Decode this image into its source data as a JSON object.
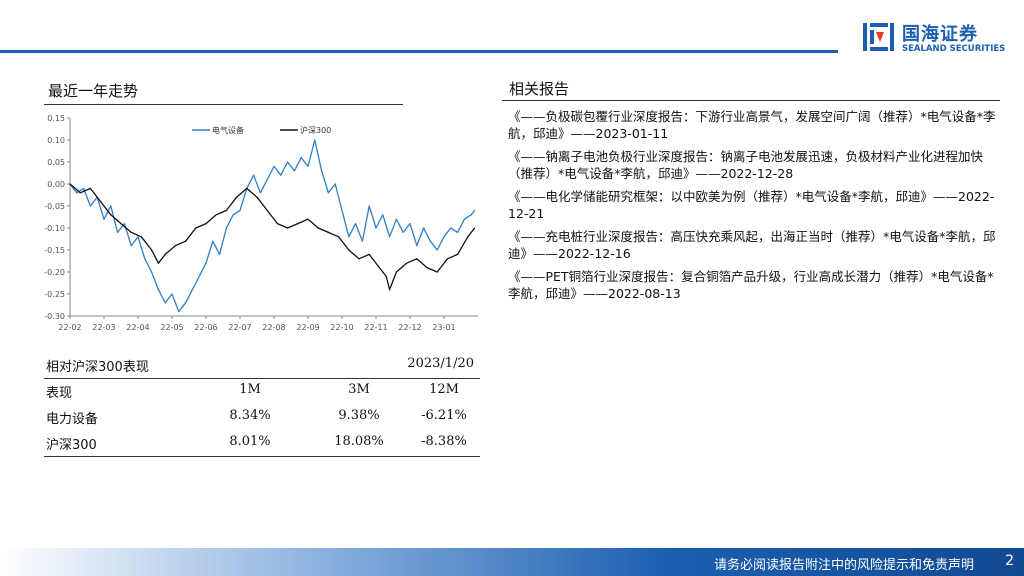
{
  "header": {
    "brand_cn": "国海证券",
    "brand_en": "SEALAND SECURITIES",
    "brand_color": "#1b5fb0"
  },
  "chart_section": {
    "title": "最近一年走势"
  },
  "chart_data": {
    "type": "line",
    "x_tick_labels": [
      "22-02",
      "22-03",
      "22-04",
      "22-05",
      "22-06",
      "22-07",
      "22-08",
      "22-09",
      "22-10",
      "22-11",
      "22-12",
      "23-01"
    ],
    "y_ticks": [
      0.15,
      0.1,
      0.05,
      0.0,
      -0.05,
      -0.1,
      -0.15,
      -0.2,
      -0.25,
      -0.3
    ],
    "y_tick_labels": [
      "0.15",
      "0.10",
      "0.05",
      "0.00",
      "-0.05",
      "-0.10",
      "-0.15",
      "-0.20",
      "-0.25",
      "-0.30"
    ],
    "ylim": [
      -0.3,
      0.15
    ],
    "xlim": [
      0,
      12
    ],
    "grid": false,
    "legend_position": "top-center",
    "series": [
      {
        "name": "电气设备",
        "color": "#2f7fc8",
        "points": [
          [
            0,
            0.0
          ],
          [
            0.2,
            -0.02
          ],
          [
            0.4,
            -0.01
          ],
          [
            0.6,
            -0.05
          ],
          [
            0.8,
            -0.03
          ],
          [
            1.0,
            -0.08
          ],
          [
            1.2,
            -0.05
          ],
          [
            1.4,
            -0.11
          ],
          [
            1.6,
            -0.09
          ],
          [
            1.8,
            -0.14
          ],
          [
            2.0,
            -0.12
          ],
          [
            2.2,
            -0.17
          ],
          [
            2.4,
            -0.2
          ],
          [
            2.6,
            -0.24
          ],
          [
            2.8,
            -0.27
          ],
          [
            3.0,
            -0.25
          ],
          [
            3.2,
            -0.29
          ],
          [
            3.4,
            -0.27
          ],
          [
            3.6,
            -0.24
          ],
          [
            3.8,
            -0.21
          ],
          [
            4.0,
            -0.18
          ],
          [
            4.2,
            -0.13
          ],
          [
            4.4,
            -0.16
          ],
          [
            4.6,
            -0.1
          ],
          [
            4.8,
            -0.07
          ],
          [
            5.0,
            -0.06
          ],
          [
            5.2,
            -0.01
          ],
          [
            5.4,
            0.02
          ],
          [
            5.6,
            -0.02
          ],
          [
            5.8,
            0.01
          ],
          [
            6.0,
            0.04
          ],
          [
            6.2,
            0.02
          ],
          [
            6.4,
            0.05
          ],
          [
            6.6,
            0.03
          ],
          [
            6.8,
            0.06
          ],
          [
            7.0,
            0.04
          ],
          [
            7.2,
            0.1
          ],
          [
            7.4,
            0.03
          ],
          [
            7.6,
            -0.02
          ],
          [
            7.8,
            0.0
          ],
          [
            8.0,
            -0.06
          ],
          [
            8.2,
            -0.12
          ],
          [
            8.4,
            -0.09
          ],
          [
            8.6,
            -0.13
          ],
          [
            8.8,
            -0.05
          ],
          [
            9.0,
            -0.1
          ],
          [
            9.2,
            -0.07
          ],
          [
            9.4,
            -0.12
          ],
          [
            9.6,
            -0.08
          ],
          [
            9.8,
            -0.11
          ],
          [
            10.0,
            -0.09
          ],
          [
            10.2,
            -0.14
          ],
          [
            10.4,
            -0.1
          ],
          [
            10.6,
            -0.13
          ],
          [
            10.8,
            -0.15
          ],
          [
            11.0,
            -0.12
          ],
          [
            11.2,
            -0.1
          ],
          [
            11.4,
            -0.11
          ],
          [
            11.6,
            -0.08
          ],
          [
            11.8,
            -0.07
          ],
          [
            11.9,
            -0.06
          ]
        ]
      },
      {
        "name": "沪深300",
        "color": "#111111",
        "points": [
          [
            0,
            0.0
          ],
          [
            0.3,
            -0.02
          ],
          [
            0.6,
            -0.01
          ],
          [
            0.9,
            -0.04
          ],
          [
            1.2,
            -0.07
          ],
          [
            1.5,
            -0.09
          ],
          [
            1.8,
            -0.11
          ],
          [
            2.1,
            -0.12
          ],
          [
            2.4,
            -0.15
          ],
          [
            2.6,
            -0.18
          ],
          [
            2.8,
            -0.16
          ],
          [
            3.1,
            -0.14
          ],
          [
            3.4,
            -0.13
          ],
          [
            3.7,
            -0.1
          ],
          [
            4.0,
            -0.09
          ],
          [
            4.3,
            -0.07
          ],
          [
            4.6,
            -0.06
          ],
          [
            4.9,
            -0.03
          ],
          [
            5.2,
            -0.01
          ],
          [
            5.5,
            -0.03
          ],
          [
            5.8,
            -0.06
          ],
          [
            6.1,
            -0.09
          ],
          [
            6.4,
            -0.1
          ],
          [
            6.7,
            -0.09
          ],
          [
            7.0,
            -0.08
          ],
          [
            7.3,
            -0.1
          ],
          [
            7.6,
            -0.11
          ],
          [
            7.9,
            -0.12
          ],
          [
            8.2,
            -0.15
          ],
          [
            8.5,
            -0.17
          ],
          [
            8.8,
            -0.16
          ],
          [
            9.1,
            -0.19
          ],
          [
            9.3,
            -0.21
          ],
          [
            9.4,
            -0.24
          ],
          [
            9.6,
            -0.2
          ],
          [
            9.9,
            -0.18
          ],
          [
            10.2,
            -0.17
          ],
          [
            10.5,
            -0.19
          ],
          [
            10.8,
            -0.2
          ],
          [
            11.1,
            -0.17
          ],
          [
            11.4,
            -0.16
          ],
          [
            11.7,
            -0.12
          ],
          [
            11.9,
            -0.1
          ]
        ]
      }
    ]
  },
  "performance": {
    "title": "相对沪深300表现",
    "date": "2023/1/20",
    "columns": [
      "表现",
      "1M",
      "3M",
      "12M"
    ],
    "rows": [
      [
        "电力设备",
        "8.34%",
        "9.38%",
        "-6.21%"
      ],
      [
        "沪深300",
        "8.01%",
        "18.08%",
        "-8.38%"
      ]
    ]
  },
  "reports_section": {
    "title": "相关报告",
    "items": [
      {
        "text": "《——负极碳包覆行业深度报告：下游行业高景气，发展空间广阔（推荐）*电气设备*李航，邱迪》——2023-01-11"
      },
      {
        "text": "《——钠离子电池负极行业深度报告：钠离子电池发展迅速，负极材料产业化进程加快（推荐）*电气设备*李航，邱迪》——2022-12-28"
      },
      {
        "text": "《——电化学储能研究框架：以中欧美为例（推荐）*电气设备*李航，邱迪》——2022-12-21"
      },
      {
        "text": "《——充电桩行业深度报告：高压快充乘风起，出海正当时（推荐）*电气设备*李航，邱迪》——2022-12-16"
      },
      {
        "text": "《——PET铜箔行业深度报告：复合铜箔产品升级，行业高成长潜力（推荐）*电气设备*李航，邱迪》——2022-08-13"
      }
    ]
  },
  "footer": {
    "disclaimer": "请务必阅读报告附注中的风险提示和免责声明",
    "page": "2"
  }
}
